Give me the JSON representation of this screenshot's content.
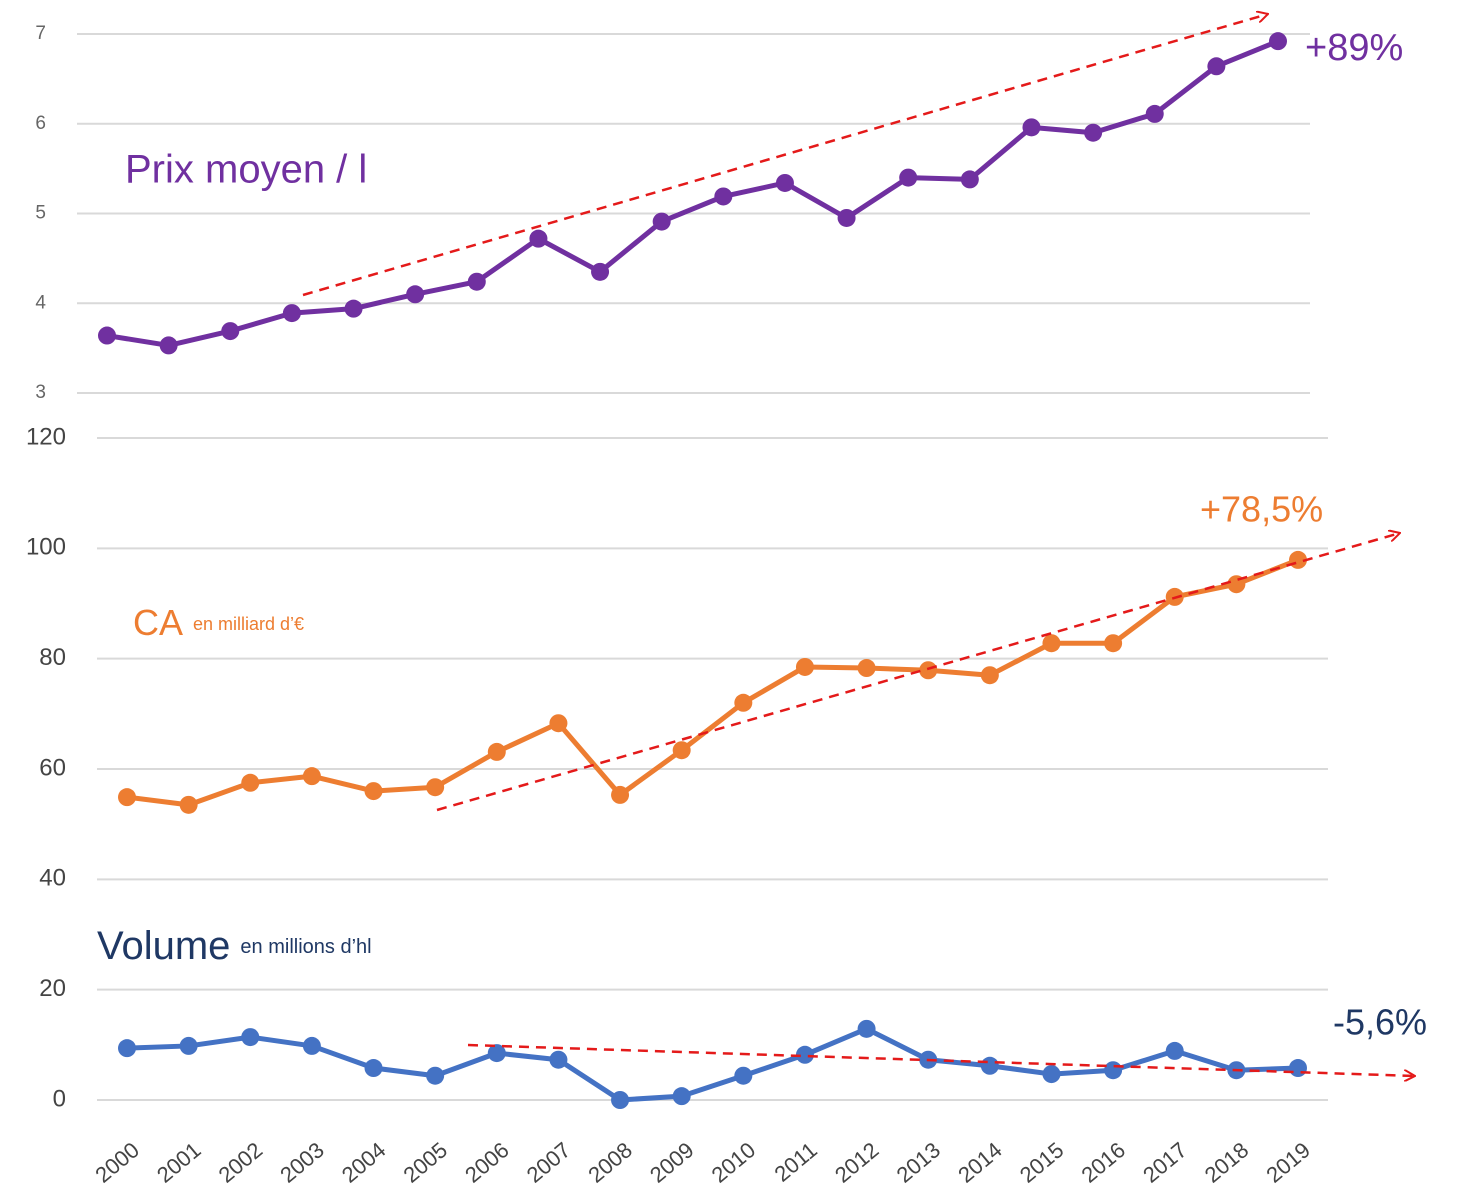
{
  "chart_data": [
    {
      "type": "line",
      "ylim": [
        3,
        7
      ],
      "yticks": [
        3,
        4,
        5,
        6,
        7
      ],
      "grid": true,
      "series": [
        {
          "name": "Prix moyen / l",
          "color": "#7030a0",
          "values": [
            3.64,
            3.53,
            3.69,
            3.89,
            3.94,
            4.1,
            4.24,
            4.72,
            4.35,
            4.91,
            5.19,
            5.34,
            4.95,
            5.4,
            5.38,
            5.96,
            5.9,
            6.11,
            6.64,
            6.92
          ]
        }
      ],
      "annotations": [
        "+89%"
      ]
    },
    {
      "type": "line",
      "categories": [
        "2000",
        "2001",
        "2002",
        "2003",
        "2004",
        "2005",
        "2006",
        "2007",
        "2008",
        "2009",
        "2010",
        "2011",
        "2012",
        "2013",
        "2014",
        "2015",
        "2016",
        "2017",
        "2018",
        "2019"
      ],
      "ylim": [
        0,
        120
      ],
      "yticks": [
        0,
        20,
        40,
        60,
        80,
        100,
        120
      ],
      "grid": true,
      "series": [
        {
          "name": "CA",
          "unit": "en milliard d’€",
          "color": "#ed7d31",
          "values": [
            54.9,
            53.5,
            57.5,
            58.7,
            56.0,
            56.7,
            63.1,
            68.3,
            55.3,
            63.4,
            72.0,
            78.5,
            78.3,
            77.9,
            77.0,
            82.8,
            82.8,
            91.2,
            93.5,
            97.9
          ]
        },
        {
          "name": "Volume",
          "unit": "en millions d’hl",
          "color": "#4472c4",
          "values": [
            9.4,
            9.8,
            11.4,
            9.8,
            5.8,
            4.4,
            8.5,
            7.3,
            0,
            0.7,
            4.4,
            8.2,
            12.9,
            7.3,
            6.2,
            4.7,
            5.4,
            8.9,
            5.4,
            5.8
          ]
        }
      ],
      "annotations": [
        "+78,5%",
        "-5,6%"
      ]
    }
  ]
}
